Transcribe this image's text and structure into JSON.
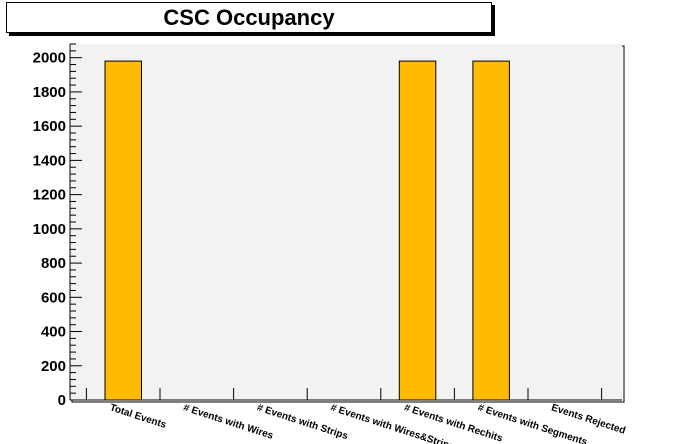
{
  "chart_data": {
    "type": "bar",
    "title": "CSC Occupancy",
    "xlabel": "",
    "ylabel": "",
    "categories": [
      "Total Events",
      "# Events with Wires",
      "# Events with Strips",
      "# Events with Wires&Strips",
      "# Events with Rechits",
      "# Events with Segments",
      "Events Rejected"
    ],
    "values": [
      1980,
      0,
      0,
      0,
      1980,
      1980,
      0
    ],
    "ylim": [
      0,
      2080
    ],
    "yticks": [
      0,
      200,
      400,
      600,
      800,
      1000,
      1200,
      1400,
      1600,
      1800,
      2000
    ],
    "grid": false,
    "colors": {
      "bar": "#ffbb00",
      "frame_bg": "#f2f2f2",
      "axis": "#000000"
    }
  }
}
